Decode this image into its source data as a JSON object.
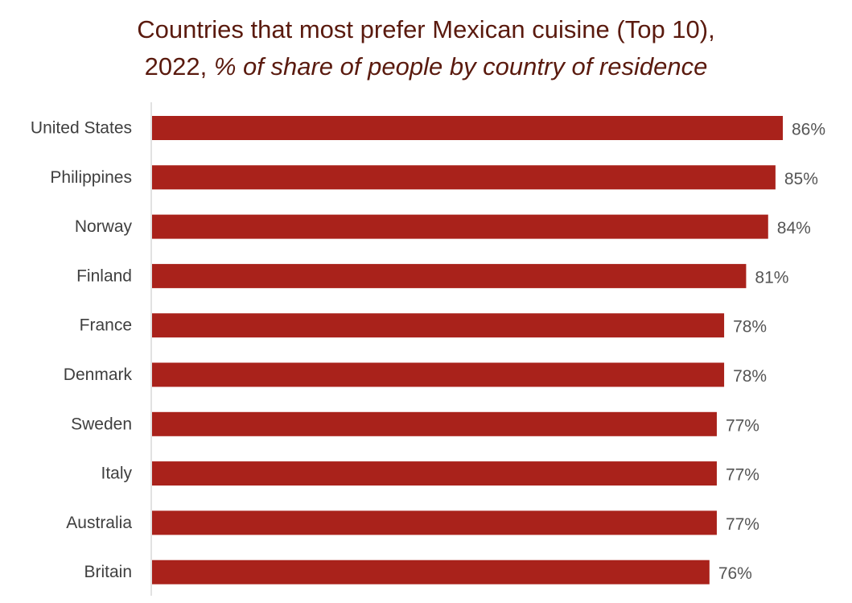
{
  "chart_data": {
    "type": "bar",
    "orientation": "horizontal",
    "title": "Countries that most prefer Mexican cuisine (Top 10),",
    "subtitle_prefix": "2022, ",
    "subtitle": "% of share of people by country of residence",
    "xlabel": "",
    "ylabel": "",
    "xlim": [
      0,
      86
    ],
    "grid": false,
    "legend": "none",
    "bar_color": "#a9221b",
    "axis_color": "#d9d9d9",
    "value_suffix": "%",
    "categories": [
      "United States",
      "Philippines",
      "Norway",
      "Finland",
      "France",
      "Denmark",
      "Sweden",
      "Italy",
      "Australia",
      "Britain"
    ],
    "values": [
      86,
      85,
      84,
      81,
      78,
      78,
      77,
      77,
      77,
      76
    ],
    "value_labels": [
      "86%",
      "85%",
      "84%",
      "81%",
      "78%",
      "78%",
      "77%",
      "77%",
      "77%",
      "76%"
    ]
  }
}
